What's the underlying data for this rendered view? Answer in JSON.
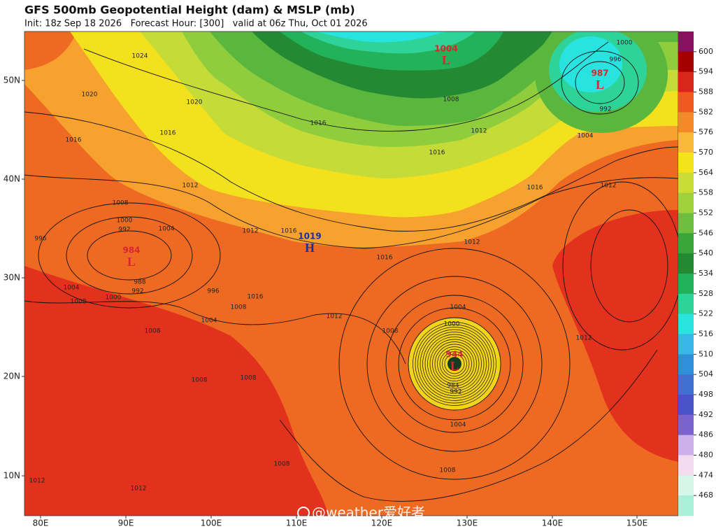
{
  "header": {
    "title": "GFS 500mb Geopotential Height (dam) & MSLP (mb)",
    "subtitle": "Init: 18z Sep 18 2026   Forecast Hour: [300]   valid at 06z Thu, Oct 01 2026"
  },
  "colorbar": {
    "labels": [
      600,
      594,
      588,
      582,
      576,
      570,
      564,
      558,
      552,
      546,
      540,
      534,
      528,
      522,
      516,
      510,
      504,
      498,
      492,
      486,
      480,
      474,
      468
    ],
    "colors": [
      "#8a1060",
      "#a50000",
      "#d9261c",
      "#ee5a1f",
      "#f5892a",
      "#f9b83a",
      "#f4e21b",
      "#c9dd36",
      "#9fd13c",
      "#6cbf3f",
      "#3aa53a",
      "#238a33",
      "#22b35a",
      "#2ed39a",
      "#29e3e0",
      "#3ab7e8",
      "#2f8fd8",
      "#3f6fd0",
      "#4a52c8",
      "#7a62d0",
      "#cbb0ec",
      "#f3dcf0",
      "#d7f5e8",
      "#a8f0d8"
    ]
  },
  "axes": {
    "lon": [
      "80E",
      "90E",
      "100E",
      "110E",
      "120E",
      "130E",
      "140E",
      "150E"
    ],
    "lat": [
      "50N",
      "40N",
      "30N",
      "20N",
      "10N"
    ]
  },
  "pressure_centers": [
    {
      "value": "1004",
      "symbol": "L"
    },
    {
      "value": "987",
      "symbol": "L"
    },
    {
      "value": "984",
      "symbol": "L"
    },
    {
      "value": "1019",
      "symbol": "H"
    },
    {
      "value": "944",
      "symbol": "L"
    }
  ],
  "isobar_labels": [
    "1024",
    "1020",
    "1020",
    "1016",
    "1016",
    "1012",
    "1008",
    "1000",
    "992",
    "996",
    "1004",
    "1012",
    "1016",
    "1016",
    "1008",
    "1012",
    "1016",
    "1016",
    "1012",
    "996",
    "1000",
    "992",
    "1004",
    "1012",
    "1016",
    "996",
    "1016",
    "1008",
    "1004",
    "1004",
    "1008",
    "1000",
    "988",
    "992",
    "1008",
    "1012",
    "1008",
    "1004",
    "1000",
    "1012",
    "984",
    "992",
    "1004",
    "1008",
    "1008",
    "1008",
    "1008",
    "1012",
    "1012"
  ],
  "watermark": "@weather爱好者"
}
